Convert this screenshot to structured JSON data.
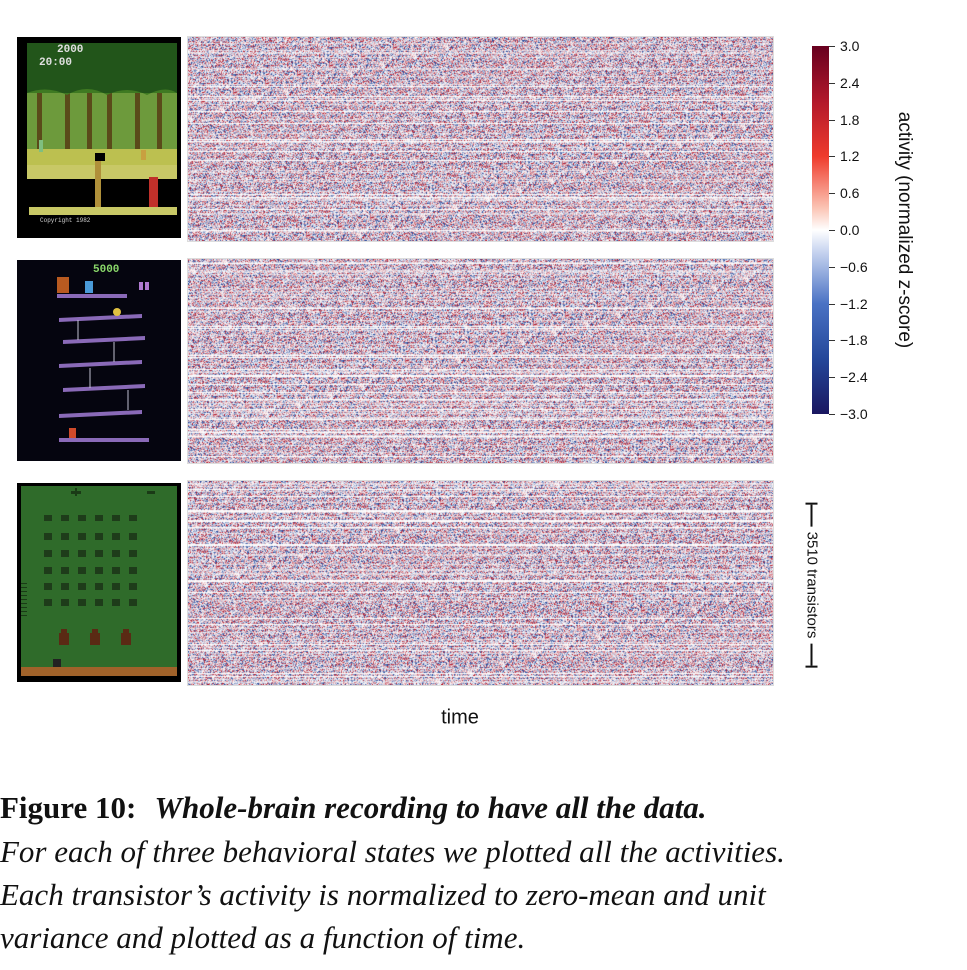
{
  "panels": [
    {
      "game": "pitfall",
      "score": "2000",
      "timer": "20:00",
      "copyright": "Copyright 1982"
    },
    {
      "game": "donkey-kong",
      "score": "5000"
    },
    {
      "game": "space-invaders"
    }
  ],
  "colorbar": {
    "label": "activity (normalized z-score)",
    "ticks": [
      "3.0",
      "2.4",
      "1.8",
      "1.2",
      "0.6",
      "0.0",
      "−0.6",
      "−1.2",
      "−1.8",
      "−2.4",
      "−3.0"
    ],
    "colors": [
      "#67001f",
      "#b2182b",
      "#ef3b2c",
      "#ffffff",
      "#4a72c4",
      "#1a1760"
    ]
  },
  "scale_label": "3510 transistors",
  "x_label": "time",
  "caption": {
    "figure": "Figure 10:",
    "title": "Whole-brain recording to have all the data.",
    "lines": [
      "For each of three behavioral states we plotted all the activities.",
      "Each transistor’s activity is normalized to zero-mean and unit",
      "variance and plotted as a function of time."
    ]
  },
  "chart_data": {
    "type": "heatmap",
    "panels": 3,
    "rows": 3510,
    "xlabel": "time",
    "colorbar_range": [
      -3.0,
      3.0
    ],
    "colormap": "diverging red-white-blue"
  }
}
